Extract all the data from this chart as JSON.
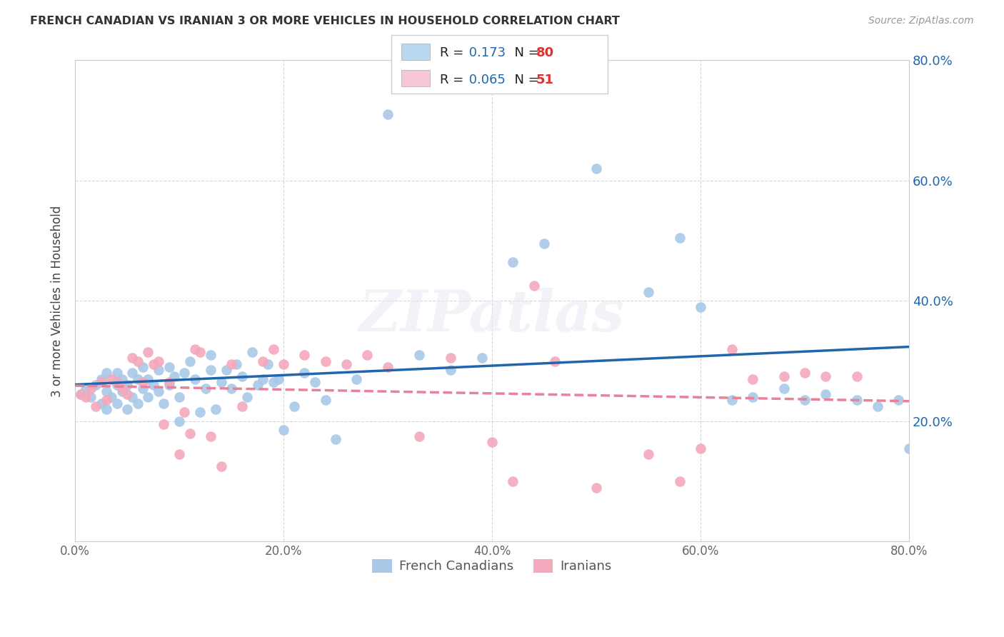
{
  "title": "FRENCH CANADIAN VS IRANIAN 3 OR MORE VEHICLES IN HOUSEHOLD CORRELATION CHART",
  "source": "Source: ZipAtlas.com",
  "ylabel": "3 or more Vehicles in Household",
  "xlim": [
    0.0,
    0.8
  ],
  "ylim": [
    0.0,
    0.8
  ],
  "xtick_values": [
    0.0,
    0.2,
    0.4,
    0.6,
    0.8
  ],
  "ytick_values": [
    0.2,
    0.4,
    0.6,
    0.8
  ],
  "blue_color": "#A8C8E8",
  "pink_color": "#F4A8BC",
  "blue_line_color": "#2166AC",
  "pink_line_color": "#E8829A",
  "watermark": "ZIPatlas",
  "legend_fc1": "#B8D8F0",
  "legend_fc2": "#F8C8D8",
  "legend_pos_label1": "French Canadians",
  "legend_pos_label2": "Iranians",
  "blue_scatter_x": [
    0.005,
    0.01,
    0.015,
    0.02,
    0.025,
    0.025,
    0.03,
    0.03,
    0.03,
    0.035,
    0.04,
    0.04,
    0.04,
    0.045,
    0.045,
    0.05,
    0.05,
    0.055,
    0.055,
    0.06,
    0.06,
    0.065,
    0.065,
    0.07,
    0.07,
    0.075,
    0.08,
    0.08,
    0.085,
    0.09,
    0.09,
    0.095,
    0.1,
    0.1,
    0.105,
    0.11,
    0.115,
    0.12,
    0.125,
    0.13,
    0.13,
    0.135,
    0.14,
    0.145,
    0.15,
    0.155,
    0.16,
    0.165,
    0.17,
    0.175,
    0.18,
    0.185,
    0.19,
    0.195,
    0.2,
    0.21,
    0.22,
    0.23,
    0.24,
    0.25,
    0.27,
    0.3,
    0.33,
    0.36,
    0.39,
    0.42,
    0.45,
    0.5,
    0.55,
    0.58,
    0.6,
    0.63,
    0.65,
    0.68,
    0.7,
    0.72,
    0.75,
    0.77,
    0.79,
    0.8
  ],
  "blue_scatter_y": [
    0.245,
    0.255,
    0.24,
    0.26,
    0.23,
    0.27,
    0.22,
    0.25,
    0.28,
    0.24,
    0.23,
    0.26,
    0.28,
    0.25,
    0.27,
    0.22,
    0.26,
    0.24,
    0.28,
    0.23,
    0.27,
    0.255,
    0.29,
    0.24,
    0.27,
    0.26,
    0.25,
    0.285,
    0.23,
    0.26,
    0.29,
    0.275,
    0.2,
    0.24,
    0.28,
    0.3,
    0.27,
    0.215,
    0.255,
    0.285,
    0.31,
    0.22,
    0.265,
    0.285,
    0.255,
    0.295,
    0.275,
    0.24,
    0.315,
    0.26,
    0.27,
    0.295,
    0.265,
    0.27,
    0.185,
    0.225,
    0.28,
    0.265,
    0.235,
    0.17,
    0.27,
    0.71,
    0.31,
    0.285,
    0.305,
    0.465,
    0.495,
    0.62,
    0.415,
    0.505,
    0.39,
    0.235,
    0.24,
    0.255,
    0.235,
    0.245,
    0.235,
    0.225,
    0.235,
    0.155
  ],
  "pink_scatter_x": [
    0.005,
    0.01,
    0.015,
    0.02,
    0.025,
    0.03,
    0.035,
    0.04,
    0.045,
    0.05,
    0.055,
    0.06,
    0.065,
    0.07,
    0.075,
    0.08,
    0.085,
    0.09,
    0.1,
    0.105,
    0.11,
    0.115,
    0.12,
    0.13,
    0.14,
    0.15,
    0.16,
    0.18,
    0.19,
    0.2,
    0.22,
    0.24,
    0.26,
    0.28,
    0.3,
    0.33,
    0.36,
    0.4,
    0.42,
    0.44,
    0.46,
    0.5,
    0.55,
    0.58,
    0.6,
    0.63,
    0.65,
    0.68,
    0.7,
    0.72,
    0.75
  ],
  "pink_scatter_y": [
    0.245,
    0.24,
    0.255,
    0.225,
    0.265,
    0.235,
    0.27,
    0.265,
    0.255,
    0.245,
    0.305,
    0.3,
    0.265,
    0.315,
    0.295,
    0.3,
    0.195,
    0.265,
    0.145,
    0.215,
    0.18,
    0.32,
    0.315,
    0.175,
    0.125,
    0.295,
    0.225,
    0.3,
    0.32,
    0.295,
    0.31,
    0.3,
    0.295,
    0.31,
    0.29,
    0.175,
    0.305,
    0.165,
    0.1,
    0.425,
    0.3,
    0.09,
    0.145,
    0.1,
    0.155,
    0.32,
    0.27,
    0.275,
    0.28,
    0.275,
    0.275
  ]
}
